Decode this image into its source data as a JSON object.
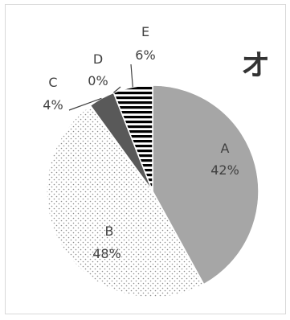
{
  "chart_data": {
    "type": "pie",
    "title": "",
    "corner_label": "オ",
    "categories": [
      "A",
      "B",
      "C",
      "D",
      "E"
    ],
    "values": [
      42,
      48,
      4,
      0,
      6
    ],
    "percent_labels": [
      "42%",
      "48%",
      "4%",
      "0%",
      "6%"
    ],
    "start": "12 o'clock",
    "direction": "clockwise",
    "legend": "none",
    "colors": {
      "A": "#a6a6a6",
      "B": "#ffffff",
      "C": "#595959",
      "D": "#ffffff",
      "E": "#ffffff",
      "outline": "#ffffff",
      "pattern_dots": "#8c8c8c",
      "pattern_stripes": "#000000",
      "leader": "#404040"
    },
    "patterns": {
      "A": "solid",
      "B": "dots",
      "C": "solid",
      "D": "none",
      "E": "horizontal-stripes"
    }
  }
}
